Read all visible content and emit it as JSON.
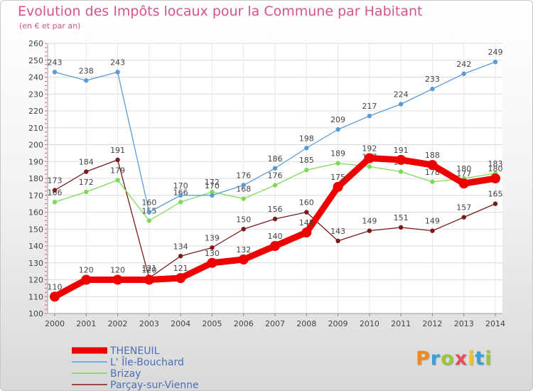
{
  "title": "Evolution des Impôts locaux pour la Commune par Habitant",
  "subtitle": "(en € et par an)",
  "logo": {
    "letters": [
      "P",
      "r",
      "o",
      "x",
      "i",
      "t",
      "i"
    ],
    "colors": [
      "#f08a1c",
      "#3aa0d8",
      "#9bc53d",
      "#e84a5f",
      "#f0c419",
      "#3aa0d8",
      "#9bc53d"
    ]
  },
  "chart_data": {
    "type": "line",
    "title": "Evolution des Impôts locaux pour la Commune par Habitant",
    "subtitle": "(en € et par an)",
    "xlabel": "",
    "ylabel": "",
    "x": [
      "2000",
      "2001",
      "2002",
      "2003",
      "2004",
      "2005",
      "2006",
      "2007",
      "2008",
      "2009",
      "2010",
      "2011",
      "2012",
      "2013",
      "2014"
    ],
    "ylim": [
      100,
      260
    ],
    "yticks": [
      "100",
      "110",
      "120",
      "130",
      "140",
      "150",
      "160",
      "170",
      "180",
      "190",
      "200",
      "210",
      "220",
      "230",
      "240",
      "250",
      "260"
    ],
    "grid": true,
    "legend_position": "bottom-left",
    "series": [
      {
        "name": "THENEUIL",
        "color": "#ee0000",
        "values": [
          110,
          120,
          120,
          120,
          121,
          130,
          132,
          140,
          148,
          175,
          192,
          191,
          188,
          177,
          180
        ],
        "labels": [
          "110",
          "120",
          "120",
          "120",
          "121",
          "130",
          "132",
          "140",
          "148",
          "175",
          "192",
          "191",
          "188",
          "177",
          "180"
        ]
      },
      {
        "name": "L' Île-Bouchard",
        "color": "#5b9bd5",
        "values": [
          243,
          238,
          243,
          160,
          170,
          170,
          176,
          186,
          198,
          209,
          217,
          224,
          233,
          242,
          249
        ],
        "labels": [
          "243",
          "238",
          "243",
          "160",
          "170",
          "170",
          "176",
          "186",
          "198",
          "209",
          "217",
          "224",
          "233",
          "242",
          "249"
        ]
      },
      {
        "name": "Brizay",
        "color": "#7ed957",
        "values": [
          166,
          172,
          179,
          155,
          166,
          172,
          168,
          176,
          185,
          189,
          187,
          184,
          178,
          180,
          183
        ],
        "labels": [
          "166",
          "172",
          "179",
          "155",
          "166",
          "172",
          "168",
          "176",
          "185",
          "189",
          "187",
          "184",
          "178",
          "180",
          "183"
        ]
      },
      {
        "name": "Parçay-sur-Vienne",
        "color": "#7a1a1a",
        "values": [
          173,
          184,
          191,
          121,
          134,
          139,
          150,
          156,
          160,
          143,
          149,
          151,
          149,
          157,
          165
        ],
        "labels": [
          "173",
          "184",
          "191",
          "121",
          "134",
          "139",
          "150",
          "156",
          "160",
          "143",
          "149",
          "151",
          "149",
          "157",
          "165"
        ]
      }
    ]
  }
}
